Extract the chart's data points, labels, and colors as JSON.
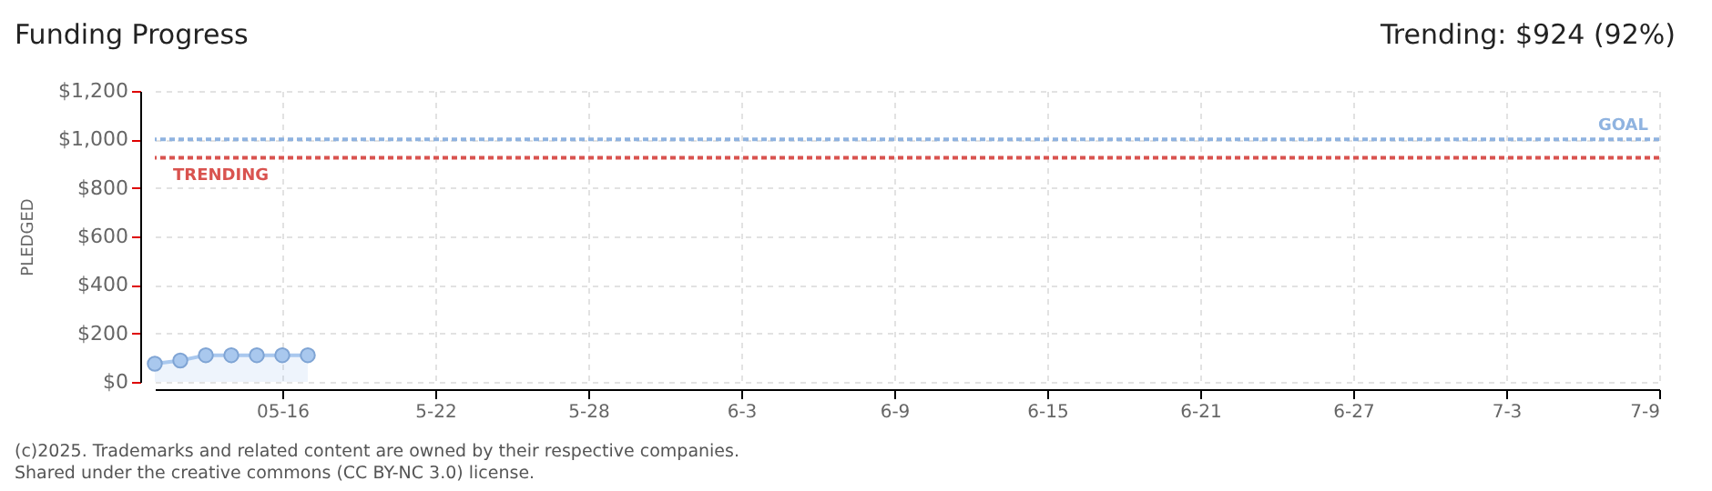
{
  "chart_data": {
    "type": "area",
    "title": "Funding Progress",
    "ylabel": "PLEDGED",
    "annotations": [
      "Trending: $924 (92%)",
      "(c)2025. Trademarks and related content are owned by their respective companies.",
      "Shared under the creative commons (CC BY-NC 3.0) license."
    ],
    "x": [
      "--05-11",
      "--05-12",
      "--05-13",
      "--05-14",
      "--05-15",
      "--05-16",
      "--05-17"
    ],
    "series": [
      {
        "color": "#a9c8ee",
        "values": [
          75,
          88,
          110,
          110,
          110,
          110,
          110
        ]
      }
    ],
    "marker": "circle",
    "grid": true,
    "xlim": [
      "--05-11",
      "--07-09"
    ],
    "xticks": [
      {
        "value": "--05-16",
        "label": "05-16"
      },
      {
        "value": "--05-22",
        "label": "5-22"
      },
      {
        "value": "--05-28",
        "label": "5-28"
      },
      {
        "value": "--06-03",
        "label": "6-3"
      },
      {
        "value": "--06-09",
        "label": "6-9"
      },
      {
        "value": "--06-15",
        "label": "6-15"
      },
      {
        "value": "--06-21",
        "label": "6-21"
      },
      {
        "value": "--06-27",
        "label": "6-27"
      },
      {
        "value": "--07-03",
        "label": "7-3"
      },
      {
        "value": "--07-09",
        "label": "7-9"
      }
    ],
    "ylim": [
      0,
      1200
    ],
    "yticks": [
      {
        "value": 0,
        "label": "$0"
      },
      {
        "value": 200,
        "label": "$200"
      },
      {
        "value": 400,
        "label": "$400"
      },
      {
        "value": 600,
        "label": "$600"
      },
      {
        "value": 800,
        "label": "$800"
      },
      {
        "value": 1000,
        "label": "$1,000"
      },
      {
        "value": 1200,
        "label": "$1,200"
      }
    ],
    "ref_lines": [
      {
        "axis": "y",
        "value": 1000,
        "label": "GOAL",
        "color": "#8fb3e0",
        "line_style": "dotted"
      },
      {
        "axis": "y",
        "value": 924,
        "label": "TRENDING",
        "color": "#d9534f",
        "line_style": "dotted"
      }
    ]
  }
}
